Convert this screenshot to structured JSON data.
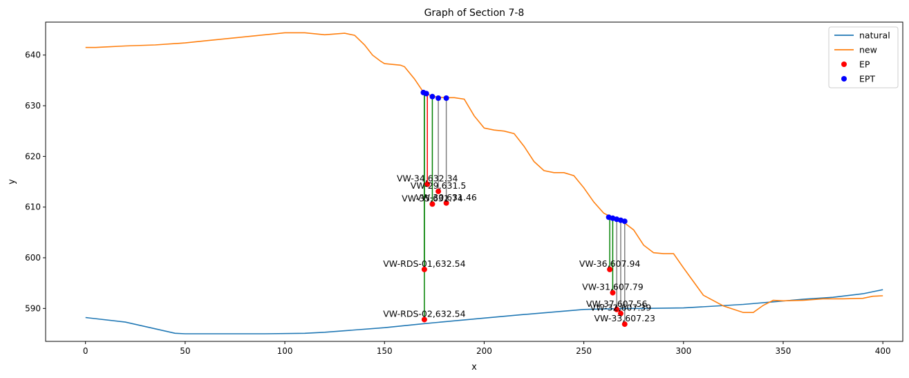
{
  "chart_data": {
    "type": "line",
    "title": "Graph of Section 7-8",
    "xlabel": "x",
    "ylabel": "y",
    "xlim": [
      -20,
      410
    ],
    "ylim": [
      583.5,
      646.5
    ],
    "xticks": [
      0,
      50,
      100,
      150,
      200,
      250,
      300,
      350,
      400
    ],
    "yticks": [
      590,
      600,
      610,
      620,
      630,
      640
    ],
    "grid": false,
    "legend_position": "top-right",
    "colors": {
      "natural": "#1f77b4",
      "new": "#ff7f0e",
      "EP": "#ff0000",
      "EPT": "#0000ff",
      "leader_active": "#008000",
      "leader_inactive": "#808080"
    },
    "legend": [
      {
        "label": "natural",
        "kind": "line",
        "color": "#1f77b4"
      },
      {
        "label": "new",
        "kind": "line",
        "color": "#ff7f0e"
      },
      {
        "label": "EP",
        "kind": "dot",
        "color": "#ff0000"
      },
      {
        "label": "EPT",
        "kind": "dot",
        "color": "#0000ff"
      }
    ],
    "series": [
      {
        "name": "natural",
        "color": "#1f77b4",
        "points": [
          [
            0,
            588.2
          ],
          [
            20,
            587.3
          ],
          [
            45,
            585.1
          ],
          [
            50,
            585
          ],
          [
            70,
            585
          ],
          [
            90,
            585
          ],
          [
            110,
            585.1
          ],
          [
            120,
            585.3
          ],
          [
            150,
            586.2
          ],
          [
            170,
            587.0
          ],
          [
            200,
            588.1
          ],
          [
            220,
            588.8
          ],
          [
            250,
            589.8
          ],
          [
            270,
            590.0
          ],
          [
            280,
            590.0
          ],
          [
            300,
            590.1
          ],
          [
            330,
            590.8
          ],
          [
            345,
            591.3
          ],
          [
            360,
            591.8
          ],
          [
            375,
            592.2
          ],
          [
            390,
            592.9
          ],
          [
            400,
            593.7
          ]
        ]
      },
      {
        "name": "new",
        "color": "#ff7f0e",
        "points": [
          [
            0,
            641.5
          ],
          [
            5,
            641.5
          ],
          [
            10,
            641.6
          ],
          [
            20,
            641.8
          ],
          [
            35,
            642.0
          ],
          [
            50,
            642.4
          ],
          [
            60,
            642.8
          ],
          [
            70,
            643.2
          ],
          [
            85,
            643.8
          ],
          [
            95,
            644.2
          ],
          [
            100,
            644.4
          ],
          [
            110,
            644.4
          ],
          [
            120,
            644.0
          ],
          [
            130,
            644.3
          ],
          [
            135,
            643.9
          ],
          [
            140,
            642.0
          ],
          [
            144,
            640.0
          ],
          [
            148,
            638.8
          ],
          [
            150,
            638.3
          ],
          [
            158,
            638.0
          ],
          [
            160,
            637.7
          ],
          [
            165,
            635.3
          ],
          [
            170,
            632.4
          ],
          [
            172,
            632.2
          ],
          [
            175,
            631.8
          ],
          [
            180,
            631.6
          ],
          [
            185,
            631.6
          ],
          [
            190,
            631.3
          ],
          [
            195,
            628.0
          ],
          [
            200,
            625.6
          ],
          [
            205,
            625.2
          ],
          [
            210,
            625.0
          ],
          [
            215,
            624.5
          ],
          [
            220,
            622.0
          ],
          [
            225,
            619.0
          ],
          [
            230,
            617.2
          ],
          [
            235,
            616.8
          ],
          [
            240,
            616.8
          ],
          [
            245,
            616.2
          ],
          [
            250,
            613.8
          ],
          [
            255,
            611.0
          ],
          [
            260,
            608.8
          ],
          [
            265,
            607.8
          ],
          [
            270,
            607.0
          ],
          [
            275,
            605.5
          ],
          [
            280,
            602.5
          ],
          [
            285,
            601.0
          ],
          [
            290,
            600.8
          ],
          [
            295,
            600.8
          ],
          [
            300,
            598.0
          ],
          [
            305,
            595.3
          ],
          [
            310,
            592.6
          ],
          [
            320,
            590.5
          ],
          [
            330,
            589.2
          ],
          [
            335,
            589.2
          ],
          [
            340,
            590.6
          ],
          [
            345,
            591.6
          ],
          [
            350,
            591.5
          ],
          [
            360,
            591.6
          ],
          [
            370,
            591.9
          ],
          [
            380,
            591.9
          ],
          [
            390,
            592.0
          ],
          [
            395,
            592.4
          ],
          [
            400,
            592.5
          ]
        ]
      }
    ],
    "ep_points": [
      {
        "x": 170,
        "y": 597.7,
        "top": 632.5,
        "leader": "green",
        "label": "VW-RDS-01,632.54"
      },
      {
        "x": 170,
        "y": 587.8,
        "top": 632.5,
        "leader": "green",
        "label": "VW-RDS-02,632.54"
      },
      {
        "x": 171.5,
        "y": 614.5,
        "top": 632.3,
        "leader": "red",
        "label": "VW-34,632.34"
      },
      {
        "x": 174,
        "y": 610.6,
        "top": 631.7,
        "leader": "green",
        "label": "VW-35,631.74"
      },
      {
        "x": 177,
        "y": 613.1,
        "top": 631.5,
        "leader": "gray",
        "label": "VW-29,631.5"
      },
      {
        "x": 181,
        "y": 610.8,
        "top": 631.5,
        "leader": "gray",
        "label": "VW-30,631.46"
      },
      {
        "x": 263,
        "y": 597.7,
        "top": 607.9,
        "leader": "green",
        "label": "VW-36,607.94"
      },
      {
        "x": 264.5,
        "y": 593.1,
        "top": 607.8,
        "leader": "green",
        "label": "VW-31,607.79"
      },
      {
        "x": 266.5,
        "y": 589.8,
        "top": 607.6,
        "leader": "gray",
        "label": "VW-37,607.56"
      },
      {
        "x": 268.5,
        "y": 589.0,
        "top": 607.4,
        "leader": "gray",
        "label": "VW-32,607.39"
      },
      {
        "x": 270.5,
        "y": 586.9,
        "top": 607.2,
        "leader": "gray",
        "label": "VW-33,607.23"
      }
    ],
    "ept_points": [
      {
        "x": 169.5,
        "y": 632.6
      },
      {
        "x": 171,
        "y": 632.4
      },
      {
        "x": 174,
        "y": 631.8
      },
      {
        "x": 177,
        "y": 631.5
      },
      {
        "x": 181,
        "y": 631.5
      },
      {
        "x": 262.5,
        "y": 608.0
      },
      {
        "x": 264.5,
        "y": 607.8
      },
      {
        "x": 266.5,
        "y": 607.6
      },
      {
        "x": 268.5,
        "y": 607.4
      },
      {
        "x": 270.5,
        "y": 607.2
      }
    ]
  }
}
